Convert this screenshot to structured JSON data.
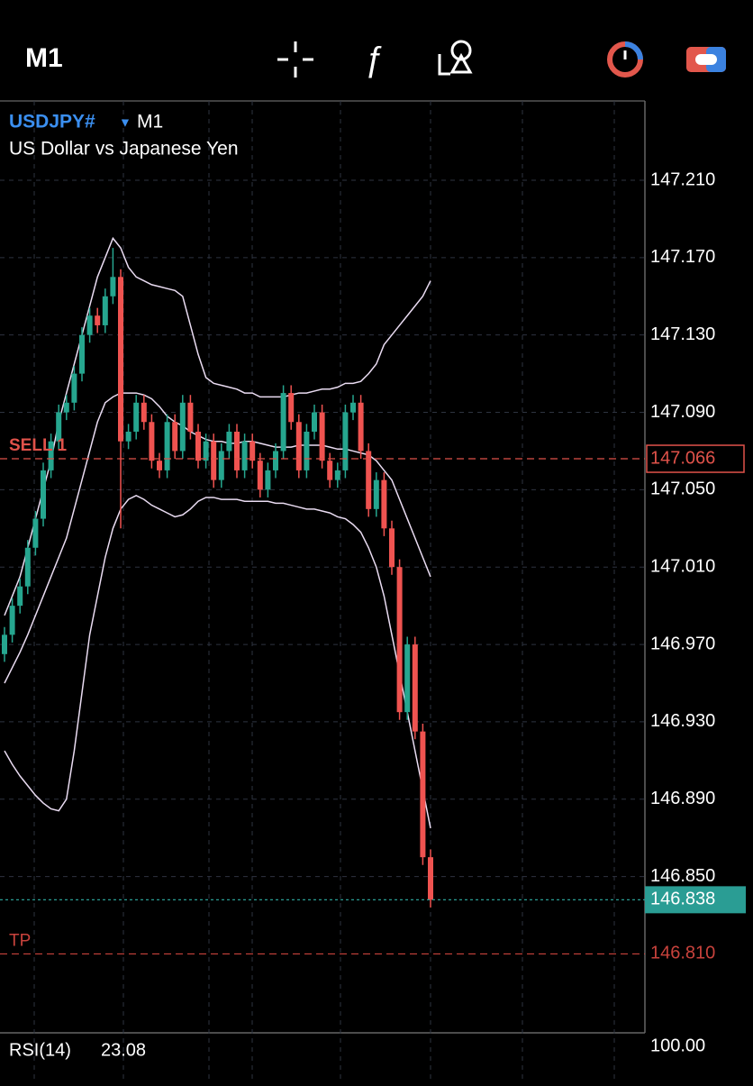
{
  "toolbar": {
    "timeframe": "M1"
  },
  "chart_data": {
    "type": "candlestick",
    "symbol": "USDJPY#",
    "timeframe": "M1",
    "description": "US Dollar vs Japanese Yen",
    "up_color": "#26a68f",
    "down_color": "#ef5350",
    "open": [
      146.965,
      146.975,
      146.99,
      147.0,
      147.02,
      147.035,
      147.06,
      147.075,
      147.09,
      147.095,
      147.11,
      147.13,
      147.14,
      147.135,
      147.15,
      147.16,
      147.075,
      147.08,
      147.095,
      147.085,
      147.065,
      147.06,
      147.085,
      147.07,
      147.095,
      147.08,
      147.065,
      147.075,
      147.055,
      147.07,
      147.08,
      147.06,
      147.075,
      147.065,
      147.05,
      147.06,
      147.07,
      147.1,
      147.085,
      147.06,
      147.08,
      147.09,
      147.065,
      147.055,
      147.06,
      147.09,
      147.095,
      147.07,
      147.04,
      147.055,
      147.03,
      147.01,
      146.935,
      146.97,
      146.925,
      146.86
    ],
    "high": [
      146.979,
      146.994,
      147.004,
      147.024,
      147.039,
      147.064,
      147.079,
      147.094,
      147.099,
      147.114,
      147.134,
      147.144,
      147.144,
      147.154,
      147.175,
      147.164,
      147.084,
      147.099,
      147.099,
      147.089,
      147.069,
      147.089,
      147.089,
      147.099,
      147.099,
      147.084,
      147.079,
      147.079,
      147.074,
      147.084,
      147.084,
      147.079,
      147.079,
      147.069,
      147.064,
      147.074,
      147.104,
      147.104,
      147.089,
      147.084,
      147.094,
      147.094,
      147.069,
      147.064,
      147.094,
      147.099,
      147.099,
      147.074,
      147.059,
      147.059,
      147.034,
      147.014,
      146.974,
      146.974,
      146.929,
      146.864
    ],
    "low": [
      146.961,
      146.971,
      146.986,
      146.996,
      147.016,
      147.031,
      147.056,
      147.071,
      147.086,
      147.091,
      147.106,
      147.126,
      147.131,
      147.131,
      147.146,
      147.03,
      147.071,
      147.076,
      147.081,
      147.061,
      147.056,
      147.056,
      147.066,
      147.066,
      147.076,
      147.061,
      147.061,
      147.051,
      147.051,
      147.066,
      147.056,
      147.056,
      147.061,
      147.046,
      147.046,
      147.056,
      147.066,
      147.081,
      147.056,
      147.056,
      147.076,
      147.061,
      147.051,
      147.051,
      147.056,
      147.086,
      147.066,
      147.036,
      147.036,
      147.026,
      147.006,
      146.931,
      146.931,
      146.921,
      146.856,
      146.834
    ],
    "close": [
      146.975,
      146.99,
      147.0,
      147.02,
      147.035,
      147.06,
      147.075,
      147.09,
      147.095,
      147.11,
      147.13,
      147.14,
      147.135,
      147.15,
      147.16,
      147.075,
      147.08,
      147.095,
      147.085,
      147.065,
      147.06,
      147.085,
      147.07,
      147.095,
      147.08,
      147.065,
      147.075,
      147.055,
      147.07,
      147.08,
      147.06,
      147.075,
      147.065,
      147.05,
      147.06,
      147.07,
      147.1,
      147.085,
      147.06,
      147.08,
      147.09,
      147.065,
      147.055,
      147.06,
      147.09,
      147.095,
      147.07,
      147.04,
      147.055,
      147.03,
      147.01,
      146.935,
      146.97,
      146.925,
      146.86,
      146.838
    ],
    "bands": [
      {
        "color": "#eadcf2",
        "values": [
          146.985,
          146.995,
          147.005,
          147.02,
          147.035,
          147.05,
          147.065,
          147.085,
          147.1,
          147.115,
          147.13,
          147.145,
          147.16,
          147.17,
          147.18,
          147.175,
          147.165,
          147.16,
          147.158,
          147.156,
          147.155,
          147.154,
          147.153,
          147.15,
          147.135,
          147.12,
          147.108,
          147.105,
          147.104,
          147.103,
          147.102,
          147.1,
          147.1,
          147.098,
          147.098,
          147.098,
          147.098,
          147.099,
          147.1,
          147.1,
          147.101,
          147.102,
          147.102,
          147.103,
          147.105,
          147.105,
          147.106,
          147.11,
          147.115,
          147.125,
          147.13,
          147.135,
          147.14,
          147.145,
          147.15,
          147.158
        ]
      },
      {
        "color": "#eadcf2",
        "values": [
          146.95,
          146.958,
          146.966,
          146.975,
          146.985,
          146.995,
          147.005,
          147.015,
          147.025,
          147.04,
          147.055,
          147.07,
          147.085,
          147.095,
          147.098,
          147.1,
          147.1,
          147.1,
          147.099,
          147.097,
          147.093,
          147.088,
          147.085,
          147.083,
          147.08,
          147.078,
          147.076,
          147.075,
          147.075,
          147.074,
          147.074,
          147.075,
          147.075,
          147.074,
          147.073,
          147.072,
          147.072,
          147.072,
          147.073,
          147.073,
          147.073,
          147.073,
          147.072,
          147.071,
          147.071,
          147.07,
          147.069,
          147.068,
          147.065,
          147.06,
          147.055,
          147.045,
          147.035,
          147.025,
          147.015,
          147.005
        ]
      },
      {
        "color": "#eadcf2",
        "values": [
          146.915,
          146.908,
          146.902,
          146.897,
          146.892,
          146.888,
          146.885,
          146.884,
          146.89,
          146.915,
          146.945,
          146.975,
          146.995,
          147.015,
          147.03,
          147.04,
          147.045,
          147.047,
          147.045,
          147.042,
          147.04,
          147.038,
          147.036,
          147.037,
          147.04,
          147.044,
          147.046,
          147.046,
          147.045,
          147.045,
          147.045,
          147.044,
          147.044,
          147.044,
          147.044,
          147.043,
          147.043,
          147.042,
          147.041,
          147.04,
          147.04,
          147.039,
          147.038,
          147.036,
          147.035,
          147.032,
          147.028,
          147.02,
          147.01,
          146.995,
          146.975,
          146.955,
          146.935,
          146.915,
          146.895,
          146.875
        ]
      }
    ],
    "ylim": [
      146.772,
      147.251
    ],
    "yticks": [
      {
        "value": 147.21,
        "label": "147.210"
      },
      {
        "value": 147.17,
        "label": "147.170"
      },
      {
        "value": 147.13,
        "label": "147.130"
      },
      {
        "value": 147.09,
        "label": "147.090"
      },
      {
        "value": 147.05,
        "label": "147.050"
      },
      {
        "value": 147.01,
        "label": "147.010"
      },
      {
        "value": 146.97,
        "label": "146.970"
      },
      {
        "value": 146.93,
        "label": "146.930"
      },
      {
        "value": 146.89,
        "label": "146.890"
      },
      {
        "value": 146.85,
        "label": "146.850"
      }
    ],
    "grid": true,
    "sell_level": {
      "name": "SELL 1",
      "price": 147.066,
      "color": "#e0524a"
    },
    "tp_level": {
      "name": "TP",
      "price": {
        "value": 146.81,
        "label": "146.810"
      },
      "color": "#c8423c"
    },
    "current_price": 146.838,
    "current_color": "#2a9d94",
    "indicator": {
      "label": "RSI(14)",
      "value": 23.08,
      "scale_top": {
        "value": 100,
        "label": "100.00"
      }
    }
  }
}
